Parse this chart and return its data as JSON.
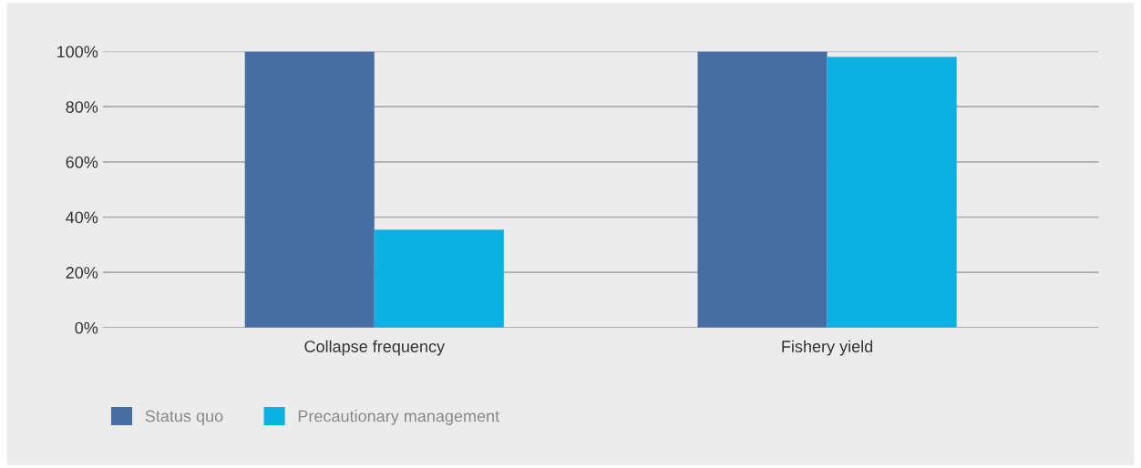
{
  "chart_data": {
    "type": "bar",
    "categories": [
      "Collapse frequency",
      "Fishery yield"
    ],
    "series": [
      {
        "name": "Status quo",
        "color": "#466ea5",
        "values": [
          100,
          100
        ]
      },
      {
        "name": "Precautionary management",
        "color": "#0ab1e2",
        "values": [
          35.5,
          98
        ]
      }
    ],
    "ylim": [
      0,
      100
    ],
    "yticks": [
      {
        "value": 0,
        "label": "0%"
      },
      {
        "value": 20,
        "label": "20%"
      },
      {
        "value": 40,
        "label": "40%"
      },
      {
        "value": 60,
        "label": "60%"
      },
      {
        "value": 80,
        "label": "80%"
      },
      {
        "value": 100,
        "label": "100%"
      }
    ],
    "grid": "y",
    "legend": "bottom left"
  }
}
